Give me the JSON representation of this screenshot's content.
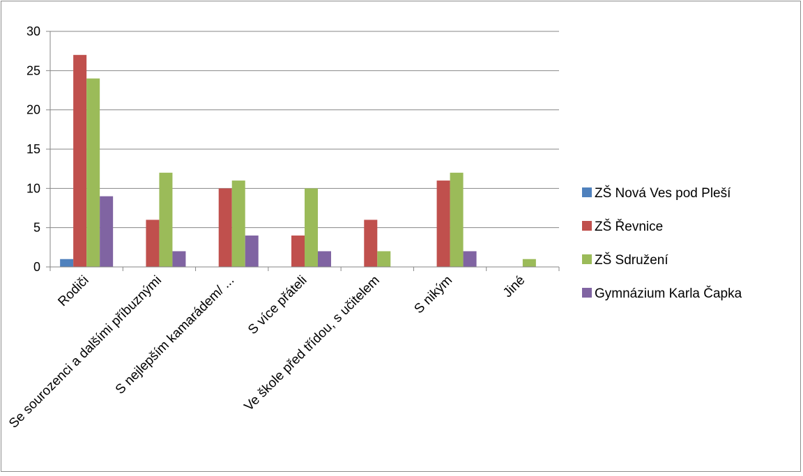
{
  "chart_data": {
    "type": "bar",
    "title": "",
    "xlabel": "",
    "ylabel": "",
    "categories": [
      "Rodiči",
      "Se sourozenci a dalšími příbuznými",
      "S nejlepším kamarádem/ ...",
      "S více přáteli",
      "Ve škole před třídou, s učitelem",
      "S nikým",
      "Jiné"
    ],
    "series": [
      {
        "name": "ZŠ Nová Ves pod Pleší",
        "color": "#4F81BD",
        "values": [
          1,
          0,
          0,
          0,
          0,
          0,
          0
        ]
      },
      {
        "name": "ZŠ Řevnice",
        "color": "#C0504D",
        "values": [
          27,
          6,
          10,
          4,
          6,
          11,
          0
        ]
      },
      {
        "name": "ZŠ Sdružení",
        "color": "#9BBB59",
        "values": [
          24,
          12,
          11,
          10,
          2,
          12,
          1
        ]
      },
      {
        "name": "Gymnázium Karla Čapka",
        "color": "#8064A2",
        "values": [
          9,
          2,
          4,
          2,
          0,
          2,
          0
        ]
      }
    ],
    "ylim": [
      0,
      30
    ],
    "yticks": [
      0,
      5,
      10,
      15,
      20,
      25,
      30
    ],
    "grid": true,
    "legend_position": "right"
  }
}
